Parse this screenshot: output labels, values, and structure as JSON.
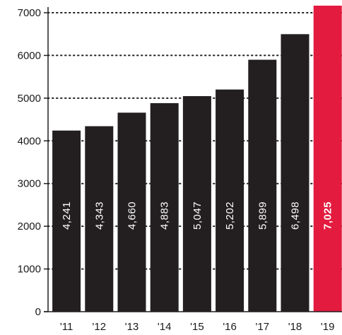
{
  "chart_data": {
    "type": "bar",
    "categories": [
      "'11",
      "'12",
      "'13",
      "'14",
      "'15",
      "'16",
      "'17",
      "'18",
      "'19"
    ],
    "values": [
      4241,
      4343,
      4660,
      4883,
      5047,
      5202,
      5899,
      6498,
      7025
    ],
    "data_labels": [
      "4,241",
      "4,343",
      "4,660",
      "4,883",
      "5,047",
      "5,202",
      "5,899",
      "6,498",
      "7,025"
    ],
    "highlight_index": 8,
    "y_ticks": [
      0,
      1000,
      2000,
      3000,
      4000,
      5000,
      6000,
      7000
    ],
    "y_tick_labels": [
      "0",
      "1000",
      "2000",
      "3000",
      "4000",
      "5000",
      "6000",
      "7000"
    ],
    "ylim": [
      0,
      7000
    ],
    "grid": "dotted horizontal",
    "title": "",
    "xlabel": "",
    "ylabel": "",
    "colors": {
      "bar": "#231f20",
      "highlight": "#e31b3f",
      "grid": "#231f20",
      "axis": "#231f20"
    }
  }
}
